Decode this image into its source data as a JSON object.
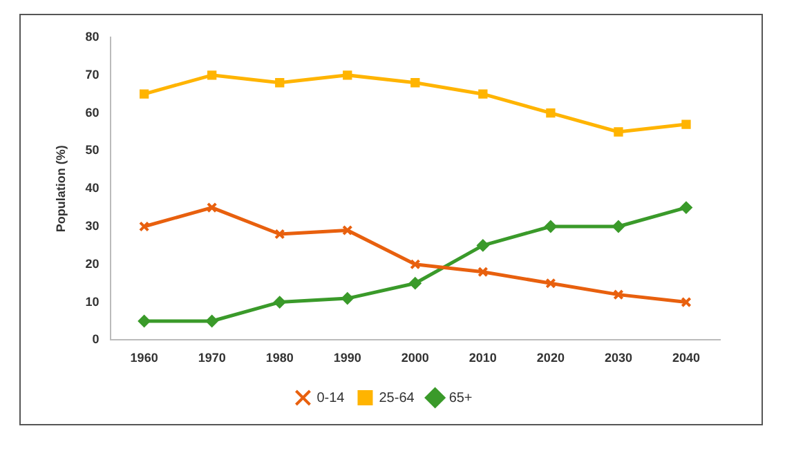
{
  "chart_data": {
    "type": "line",
    "ylabel": "Population (%)",
    "categories": [
      "1960",
      "1970",
      "1980",
      "1990",
      "2000",
      "2010",
      "2020",
      "2030",
      "2040"
    ],
    "series": [
      {
        "name": "0-14",
        "color": "#e8600e",
        "marker": "cross",
        "values": [
          30,
          35,
          28,
          29,
          20,
          18,
          15,
          12,
          10
        ]
      },
      {
        "name": "25-64",
        "color": "#ffb400",
        "marker": "square",
        "values": [
          65,
          70,
          68,
          70,
          68,
          65,
          60,
          55,
          57
        ]
      },
      {
        "name": "65+",
        "color": "#3a9a2a",
        "marker": "diamond",
        "values": [
          5,
          5,
          10,
          11,
          15,
          25,
          30,
          30,
          35
        ]
      }
    ],
    "ylim": [
      0,
      80
    ],
    "yticks": [
      0,
      10,
      20,
      30,
      40,
      50,
      60,
      70,
      80
    ],
    "grid": false,
    "legend": "bottom"
  }
}
